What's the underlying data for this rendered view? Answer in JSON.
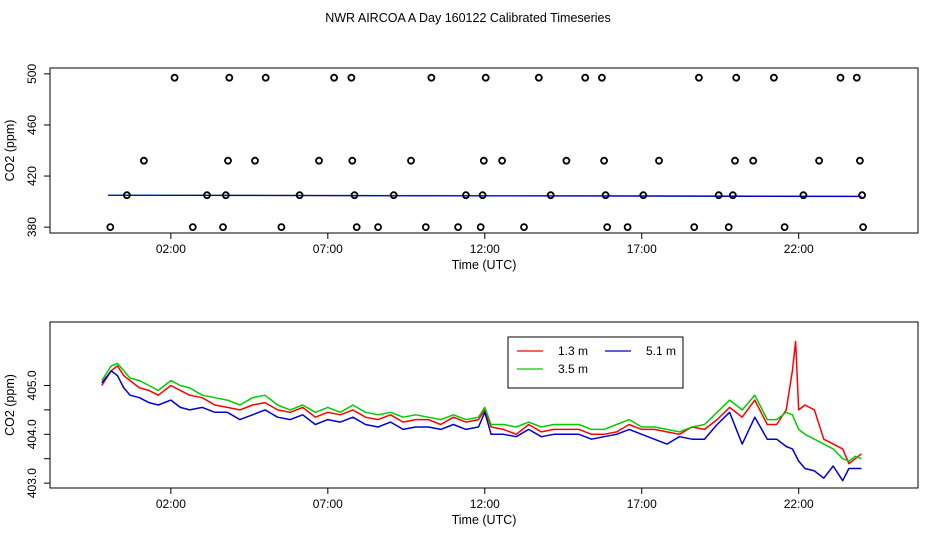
{
  "title": "NWR AIRCOA A  Day 160122  Calibrated Timeseries",
  "colors": {
    "red": "#ff0000",
    "green": "#00cc00",
    "blue": "#0000cc",
    "black": "#000000",
    "teal": "#00a0a0"
  },
  "chart_data": [
    {
      "type": "scatter",
      "xlabel": "Time (UTC)",
      "ylabel": "CO2 (ppm)",
      "xlim": [
        -1.85,
        25.8
      ],
      "ylim": [
        375.4,
        504.6
      ],
      "xticks": [
        2,
        7,
        12,
        17,
        22
      ],
      "xtick_labels": [
        "02:00",
        "07:00",
        "12:00",
        "17:00",
        "22:00"
      ],
      "yticks": [
        380,
        420,
        460,
        500
      ],
      "ytick_labels": [
        "380",
        "420",
        "460",
        "500"
      ],
      "points": [
        [
          0.07,
          380
        ],
        [
          0.6,
          405
        ],
        [
          1.14,
          432
        ],
        [
          2.12,
          497
        ],
        [
          2.7,
          380
        ],
        [
          3.15,
          405
        ],
        [
          3.66,
          380
        ],
        [
          3.75,
          405
        ],
        [
          3.82,
          432
        ],
        [
          3.86,
          497
        ],
        [
          4.68,
          432
        ],
        [
          5.02,
          497
        ],
        [
          5.52,
          380
        ],
        [
          6.1,
          405
        ],
        [
          6.72,
          432
        ],
        [
          7.2,
          497
        ],
        [
          7.75,
          497
        ],
        [
          7.78,
          432
        ],
        [
          7.85,
          405
        ],
        [
          7.92,
          380
        ],
        [
          8.6,
          380
        ],
        [
          9.1,
          405
        ],
        [
          9.65,
          432
        ],
        [
          10.12,
          380
        ],
        [
          10.3,
          497
        ],
        [
          11.15,
          380
        ],
        [
          11.4,
          405
        ],
        [
          11.87,
          380
        ],
        [
          11.93,
          405
        ],
        [
          11.97,
          432
        ],
        [
          12.03,
          497
        ],
        [
          12.55,
          432
        ],
        [
          13.25,
          380
        ],
        [
          13.72,
          497
        ],
        [
          14.1,
          405
        ],
        [
          14.6,
          432
        ],
        [
          15.2,
          497
        ],
        [
          15.73,
          497
        ],
        [
          15.8,
          432
        ],
        [
          15.85,
          405
        ],
        [
          15.9,
          380
        ],
        [
          16.55,
          380
        ],
        [
          17.05,
          405
        ],
        [
          17.55,
          432
        ],
        [
          18.67,
          380
        ],
        [
          18.82,
          497
        ],
        [
          19.45,
          405
        ],
        [
          19.77,
          380
        ],
        [
          19.9,
          405
        ],
        [
          19.97,
          432
        ],
        [
          20.01,
          497
        ],
        [
          20.55,
          432
        ],
        [
          21.21,
          497
        ],
        [
          21.55,
          380
        ],
        [
          22.15,
          405
        ],
        [
          22.65,
          432
        ],
        [
          23.33,
          497
        ],
        [
          23.85,
          497
        ],
        [
          23.95,
          432
        ],
        [
          24.02,
          405
        ],
        [
          24.05,
          380
        ]
      ],
      "series": [
        {
          "name": "1.3 m",
          "color": "#ff0000",
          "x": [
            0,
            24
          ],
          "y": [
            405,
            404.2
          ]
        },
        {
          "name": "3.5 m",
          "color": "#00a0a0",
          "x": [
            0,
            24
          ],
          "y": [
            405.1,
            404.3
          ]
        },
        {
          "name": "5.1 m",
          "color": "#0000cc",
          "x": [
            0,
            24
          ],
          "y": [
            404.9,
            404.0
          ]
        }
      ]
    },
    {
      "type": "line",
      "xlabel": "Time (UTC)",
      "ylabel": "CO2 (ppm)",
      "xlim": [
        -1.85,
        25.8
      ],
      "ylim": [
        402.9,
        406.3
      ],
      "xticks": [
        2,
        7,
        12,
        17,
        22
      ],
      "xtick_labels": [
        "02:00",
        "07:00",
        "12:00",
        "17:00",
        "22:00"
      ],
      "yticks": [
        403.0,
        403.5,
        404.0,
        404.5,
        405.0
      ],
      "ytick_labels": [
        "403.0",
        "",
        "404.0",
        "",
        "405.0"
      ],
      "legend": {
        "position": "top-center",
        "entries": [
          "1.3 m",
          "3.5 m",
          "5.1 m"
        ]
      },
      "series": [
        {
          "name": "1.3 m",
          "color": "#ff0000",
          "x": [
            -0.2,
            0.1,
            0.3,
            0.5,
            0.7,
            1.0,
            1.3,
            1.6,
            2.0,
            2.3,
            2.6,
            3.0,
            3.4,
            3.8,
            4.2,
            4.6,
            5.0,
            5.4,
            5.8,
            6.2,
            6.6,
            7.0,
            7.4,
            7.8,
            8.2,
            8.6,
            9.0,
            9.4,
            9.8,
            10.2,
            10.6,
            11.0,
            11.4,
            11.8,
            12.0,
            12.2,
            12.6,
            13.0,
            13.4,
            13.8,
            14.2,
            14.6,
            15.0,
            15.4,
            15.8,
            16.2,
            16.6,
            17.0,
            17.4,
            17.8,
            18.2,
            18.6,
            19.0,
            19.4,
            19.8,
            20.2,
            20.6,
            21.0,
            21.3,
            21.6,
            21.8,
            21.9,
            22.0,
            22.2,
            22.5,
            22.8,
            23.1,
            23.4,
            23.6,
            23.8,
            24.0
          ],
          "y": [
            405.0,
            405.3,
            405.4,
            405.2,
            405.1,
            404.95,
            404.9,
            404.8,
            405.0,
            404.9,
            404.8,
            404.75,
            404.6,
            404.55,
            404.5,
            404.6,
            404.65,
            404.5,
            404.45,
            404.55,
            404.35,
            404.45,
            404.4,
            404.5,
            404.35,
            404.3,
            404.4,
            404.25,
            404.3,
            404.3,
            404.2,
            404.35,
            404.25,
            404.3,
            404.5,
            404.15,
            404.1,
            404.0,
            404.2,
            404.05,
            404.1,
            404.1,
            404.1,
            404.0,
            404.0,
            404.05,
            404.2,
            404.1,
            404.1,
            404.05,
            404.0,
            404.15,
            404.1,
            404.3,
            404.55,
            404.35,
            404.7,
            404.2,
            404.2,
            404.5,
            405.3,
            405.9,
            404.5,
            404.6,
            404.5,
            403.9,
            403.8,
            403.7,
            403.4,
            403.5,
            403.6
          ]
        },
        {
          "name": "3.5 m",
          "color": "#00cc00",
          "x": [
            -0.2,
            0.1,
            0.3,
            0.5,
            0.7,
            1.0,
            1.3,
            1.6,
            2.0,
            2.3,
            2.6,
            3.0,
            3.4,
            3.8,
            4.2,
            4.6,
            5.0,
            5.4,
            5.8,
            6.2,
            6.6,
            7.0,
            7.4,
            7.8,
            8.2,
            8.6,
            9.0,
            9.4,
            9.8,
            10.2,
            10.6,
            11.0,
            11.4,
            11.8,
            12.0,
            12.2,
            12.6,
            13.0,
            13.4,
            13.8,
            14.2,
            14.6,
            15.0,
            15.4,
            15.8,
            16.2,
            16.6,
            17.0,
            17.4,
            17.8,
            18.2,
            18.6,
            19.0,
            19.4,
            19.8,
            20.2,
            20.6,
            21.0,
            21.3,
            21.6,
            21.8,
            22.0,
            22.2,
            22.5,
            22.8,
            23.1,
            23.4,
            23.6,
            23.8,
            24.0
          ],
          "y": [
            405.1,
            405.4,
            405.45,
            405.3,
            405.15,
            405.1,
            405.0,
            404.9,
            405.1,
            405.0,
            404.95,
            404.8,
            404.75,
            404.7,
            404.6,
            404.75,
            404.8,
            404.6,
            404.5,
            404.6,
            404.45,
            404.55,
            404.45,
            404.6,
            404.45,
            404.4,
            404.45,
            404.35,
            404.4,
            404.35,
            404.3,
            404.4,
            404.3,
            404.35,
            404.55,
            404.2,
            404.2,
            404.15,
            404.25,
            404.15,
            404.2,
            404.2,
            404.2,
            404.1,
            404.1,
            404.2,
            404.3,
            404.15,
            404.15,
            404.1,
            404.05,
            404.15,
            404.2,
            404.45,
            404.7,
            404.5,
            404.8,
            404.3,
            404.3,
            404.45,
            404.4,
            404.1,
            404.0,
            403.9,
            403.8,
            403.7,
            403.5,
            403.45,
            403.55,
            403.5
          ]
        },
        {
          "name": "5.1 m",
          "color": "#0000cc",
          "x": [
            -0.2,
            0.1,
            0.3,
            0.5,
            0.7,
            1.0,
            1.3,
            1.6,
            2.0,
            2.3,
            2.6,
            3.0,
            3.4,
            3.8,
            4.2,
            4.6,
            5.0,
            5.4,
            5.8,
            6.2,
            6.6,
            7.0,
            7.4,
            7.8,
            8.2,
            8.6,
            9.0,
            9.4,
            9.8,
            10.2,
            10.6,
            11.0,
            11.4,
            11.8,
            12.0,
            12.2,
            12.6,
            13.0,
            13.4,
            13.8,
            14.2,
            14.6,
            15.0,
            15.4,
            15.8,
            16.2,
            16.6,
            17.0,
            17.4,
            17.8,
            18.2,
            18.6,
            19.0,
            19.4,
            19.8,
            20.2,
            20.6,
            21.0,
            21.3,
            21.6,
            21.8,
            22.0,
            22.2,
            22.5,
            22.8,
            23.1,
            23.4,
            23.6,
            23.8,
            24.0
          ],
          "y": [
            405.05,
            405.3,
            405.2,
            404.95,
            404.8,
            404.75,
            404.65,
            404.6,
            404.7,
            404.55,
            404.5,
            404.55,
            404.45,
            404.45,
            404.3,
            404.4,
            404.5,
            404.35,
            404.3,
            404.4,
            404.2,
            404.3,
            404.25,
            404.35,
            404.2,
            404.15,
            404.25,
            404.1,
            404.15,
            404.15,
            404.1,
            404.2,
            404.1,
            404.15,
            404.45,
            404.0,
            404.0,
            403.95,
            404.1,
            403.95,
            404.0,
            404.0,
            404.0,
            403.9,
            403.95,
            404.0,
            404.1,
            404.0,
            403.9,
            403.8,
            403.95,
            403.9,
            403.9,
            404.2,
            404.45,
            403.8,
            404.35,
            403.9,
            403.9,
            403.75,
            403.7,
            403.45,
            403.3,
            403.25,
            403.1,
            403.35,
            403.05,
            403.3,
            403.3,
            403.3
          ]
        }
      ]
    }
  ]
}
